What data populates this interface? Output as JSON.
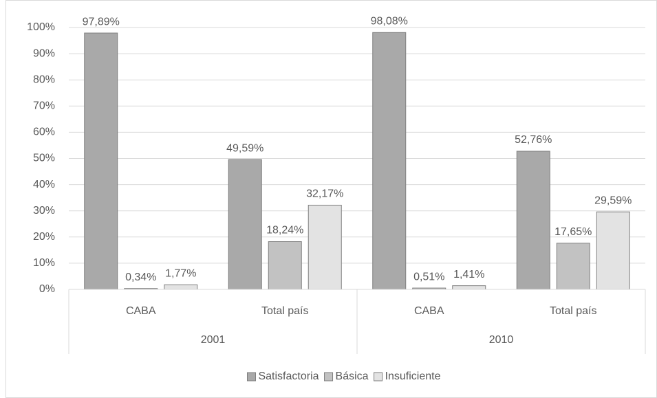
{
  "chart_data": {
    "type": "bar",
    "categories": [
      "CABA",
      "Total país",
      "CABA",
      "Total país"
    ],
    "category_groups": [
      "2001",
      "2010"
    ],
    "series": [
      {
        "name": "Satisfactoria",
        "color": "#a9a9a9",
        "values": [
          97.89,
          49.59,
          98.08,
          52.76
        ],
        "value_labels": [
          "97,89%",
          "49,59%",
          "98,08%",
          "52,76%"
        ]
      },
      {
        "name": "Básica",
        "color": "#c2c2c2",
        "values": [
          0.34,
          18.24,
          0.51,
          17.65
        ],
        "value_labels": [
          "0,34%",
          "18,24%",
          "0,51%",
          "17,65%"
        ]
      },
      {
        "name": "Insuficiente",
        "color": "#e3e3e3",
        "values": [
          1.77,
          32.17,
          1.41,
          29.59
        ],
        "value_labels": [
          "1,77%",
          "32,17%",
          "1,41%",
          "29,59%"
        ]
      }
    ],
    "ylim": [
      0,
      100
    ],
    "yticks": [
      {
        "value": 0,
        "label": "0%"
      },
      {
        "value": 10,
        "label": "10%"
      },
      {
        "value": 20,
        "label": "20%"
      },
      {
        "value": 30,
        "label": "30%"
      },
      {
        "value": 40,
        "label": "40%"
      },
      {
        "value": 50,
        "label": "50%"
      },
      {
        "value": 60,
        "label": "60%"
      },
      {
        "value": 70,
        "label": "70%"
      },
      {
        "value": 80,
        "label": "80%"
      },
      {
        "value": 90,
        "label": "90%"
      },
      {
        "value": 100,
        "label": "100%"
      }
    ],
    "grid": true,
    "legend": "bottom"
  }
}
